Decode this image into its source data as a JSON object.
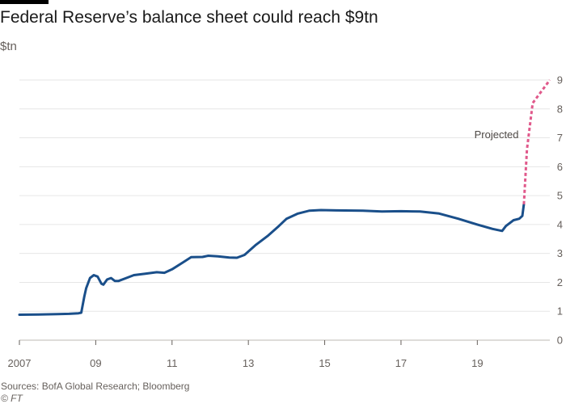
{
  "header": {
    "title": "Federal Reserve’s balance sheet could reach $9tn",
    "unit": "$tn"
  },
  "footer": {
    "source": "Sources: BofA Global Research; Bloomberg",
    "copyright": "© FT"
  },
  "colors": {
    "actual_line": "#1a4f8a",
    "projected_line": "#e0598b",
    "grid": "#e6e6e6",
    "axis": "#66605c",
    "accent_bar": "#000000"
  },
  "chart_data": {
    "type": "line",
    "title": "Federal Reserve’s balance sheet could reach $9tn",
    "ylabel": "$tn",
    "xlim": [
      2007,
      2020.9
    ],
    "ylim": [
      0,
      9
    ],
    "y_ticks": [
      0,
      1,
      2,
      3,
      4,
      5,
      6,
      7,
      8,
      9
    ],
    "y_axis_position": "right",
    "grid": true,
    "x_ticks": [
      {
        "value": 2007,
        "label": "2007"
      },
      {
        "value": 2009,
        "label": "09"
      },
      {
        "value": 2011,
        "label": "11"
      },
      {
        "value": 2013,
        "label": "13"
      },
      {
        "value": 2015,
        "label": "15"
      },
      {
        "value": 2017,
        "label": "17"
      },
      {
        "value": 2019,
        "label": "19"
      }
    ],
    "annotations": [
      {
        "text": "Projected",
        "x": 2020.0,
        "y": 7.1
      }
    ],
    "series": [
      {
        "style": "solid",
        "points": [
          [
            2007.0,
            0.88
          ],
          [
            2007.5,
            0.89
          ],
          [
            2008.0,
            0.9
          ],
          [
            2008.3,
            0.91
          ],
          [
            2008.55,
            0.93
          ],
          [
            2008.62,
            0.95
          ],
          [
            2008.7,
            1.5
          ],
          [
            2008.75,
            1.8
          ],
          [
            2008.85,
            2.15
          ],
          [
            2008.95,
            2.25
          ],
          [
            2009.05,
            2.2
          ],
          [
            2009.15,
            1.95
          ],
          [
            2009.2,
            1.92
          ],
          [
            2009.3,
            2.1
          ],
          [
            2009.4,
            2.15
          ],
          [
            2009.5,
            2.05
          ],
          [
            2009.6,
            2.05
          ],
          [
            2009.8,
            2.15
          ],
          [
            2010.0,
            2.25
          ],
          [
            2010.3,
            2.3
          ],
          [
            2010.6,
            2.35
          ],
          [
            2010.8,
            2.33
          ],
          [
            2011.0,
            2.45
          ],
          [
            2011.3,
            2.7
          ],
          [
            2011.5,
            2.87
          ],
          [
            2011.8,
            2.88
          ],
          [
            2011.95,
            2.92
          ],
          [
            2012.2,
            2.9
          ],
          [
            2012.5,
            2.86
          ],
          [
            2012.7,
            2.85
          ],
          [
            2012.9,
            2.95
          ],
          [
            2013.2,
            3.3
          ],
          [
            2013.5,
            3.6
          ],
          [
            2013.8,
            3.95
          ],
          [
            2014.0,
            4.2
          ],
          [
            2014.3,
            4.38
          ],
          [
            2014.6,
            4.48
          ],
          [
            2014.9,
            4.5
          ],
          [
            2015.3,
            4.49
          ],
          [
            2016.0,
            4.48
          ],
          [
            2016.5,
            4.45
          ],
          [
            2017.0,
            4.46
          ],
          [
            2017.5,
            4.45
          ],
          [
            2018.0,
            4.38
          ],
          [
            2018.5,
            4.2
          ],
          [
            2019.0,
            4.0
          ],
          [
            2019.4,
            3.85
          ],
          [
            2019.65,
            3.78
          ],
          [
            2019.75,
            3.95
          ],
          [
            2019.95,
            4.15
          ],
          [
            2020.1,
            4.2
          ],
          [
            2020.18,
            4.3
          ],
          [
            2020.22,
            4.7
          ]
        ]
      },
      {
        "style": "dashed",
        "points": [
          [
            2020.22,
            4.7
          ],
          [
            2020.3,
            6.6
          ],
          [
            2020.45,
            8.2
          ],
          [
            2020.9,
            9.0
          ]
        ]
      }
    ]
  }
}
